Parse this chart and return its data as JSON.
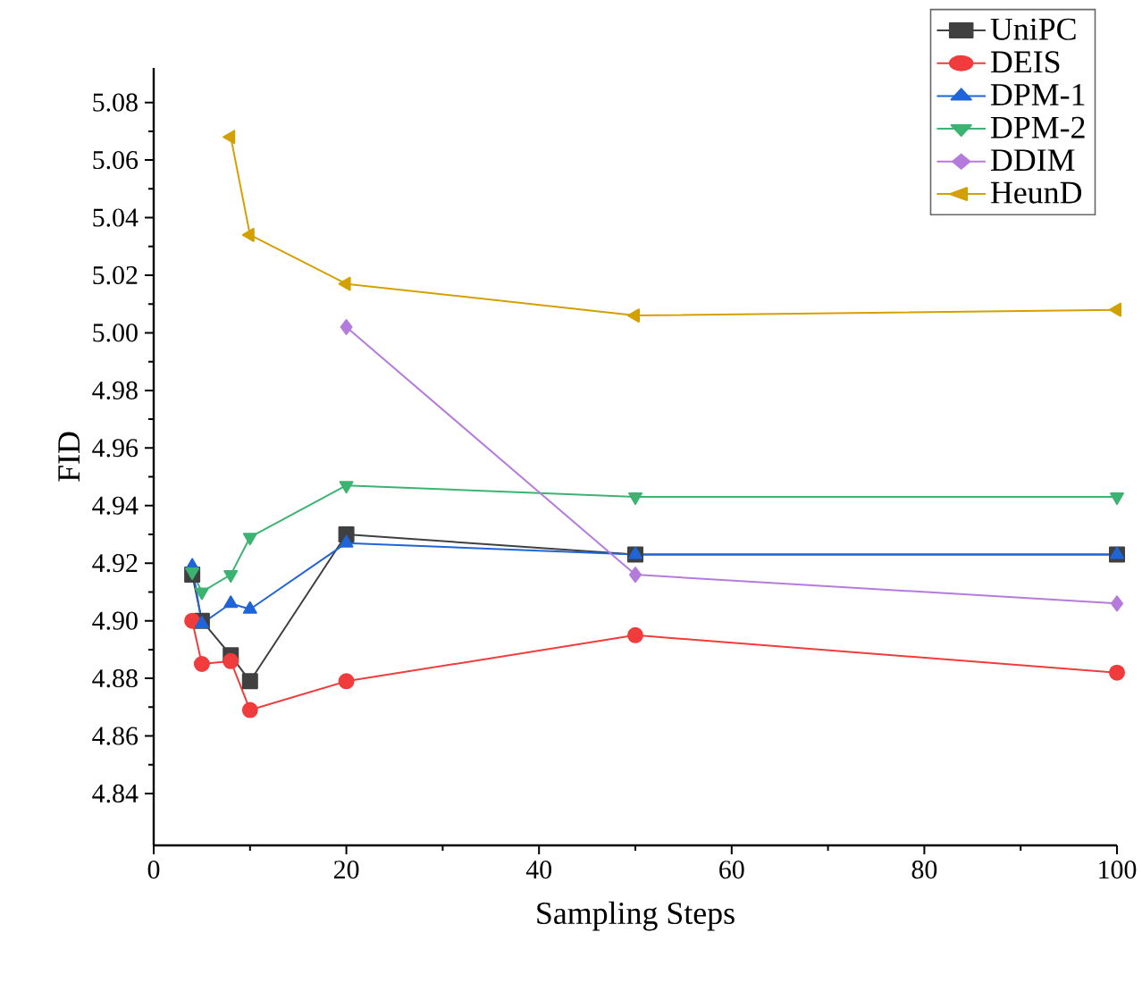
{
  "chart_data": {
    "type": "line",
    "xlabel": "Sampling Steps",
    "ylabel": "FID",
    "xlim": [
      0,
      100
    ],
    "ylim": [
      4.822,
      5.092
    ],
    "xticks": [
      0,
      20,
      40,
      60,
      80,
      100
    ],
    "yticks": [
      4.84,
      4.86,
      4.88,
      {
        "value": 4.9,
        "label": "4.90"
      },
      4.92,
      4.94,
      4.96,
      4.98,
      {
        "value": 5.0,
        "label": "5.00"
      },
      5.02,
      5.04,
      5.06,
      5.08
    ],
    "legend": "top right",
    "grid": false,
    "series": [
      {
        "name": "UniPC",
        "color": "#404040",
        "marker": "square",
        "x": [
          4,
          5,
          8,
          10,
          20,
          50,
          100
        ],
        "values": [
          4.916,
          4.9,
          4.888,
          4.879,
          4.93,
          4.923,
          4.923
        ]
      },
      {
        "name": "DEIS",
        "color": "#f03c3c",
        "marker": "circle",
        "x": [
          4,
          5,
          8,
          10,
          20,
          50,
          100
        ],
        "values": [
          4.9,
          4.885,
          4.886,
          4.869,
          4.879,
          4.895,
          4.882
        ]
      },
      {
        "name": "DPM-1",
        "color": "#1f64d8",
        "marker": "triangle",
        "x": [
          4,
          5,
          8,
          10,
          20,
          50,
          100
        ],
        "values": [
          4.919,
          4.899,
          4.906,
          4.904,
          4.927,
          4.923,
          4.923
        ]
      },
      {
        "name": "DPM-2",
        "color": "#3cb371",
        "marker": "triangle-down",
        "x": [
          4,
          5,
          8,
          10,
          20,
          50,
          100
        ],
        "values": [
          4.917,
          4.91,
          4.916,
          4.929,
          4.947,
          4.943,
          4.943
        ]
      },
      {
        "name": "DDIM",
        "color": "#b57bdc",
        "marker": "diamond",
        "x": [
          20,
          50,
          100
        ],
        "values": [
          5.002,
          4.916,
          4.906
        ]
      },
      {
        "name": "HeunD",
        "color": "#d4a000",
        "marker": "triangle-left",
        "x": [
          8,
          10,
          20,
          50,
          100
        ],
        "values": [
          5.068,
          5.034,
          5.017,
          5.006,
          5.008
        ]
      }
    ]
  }
}
